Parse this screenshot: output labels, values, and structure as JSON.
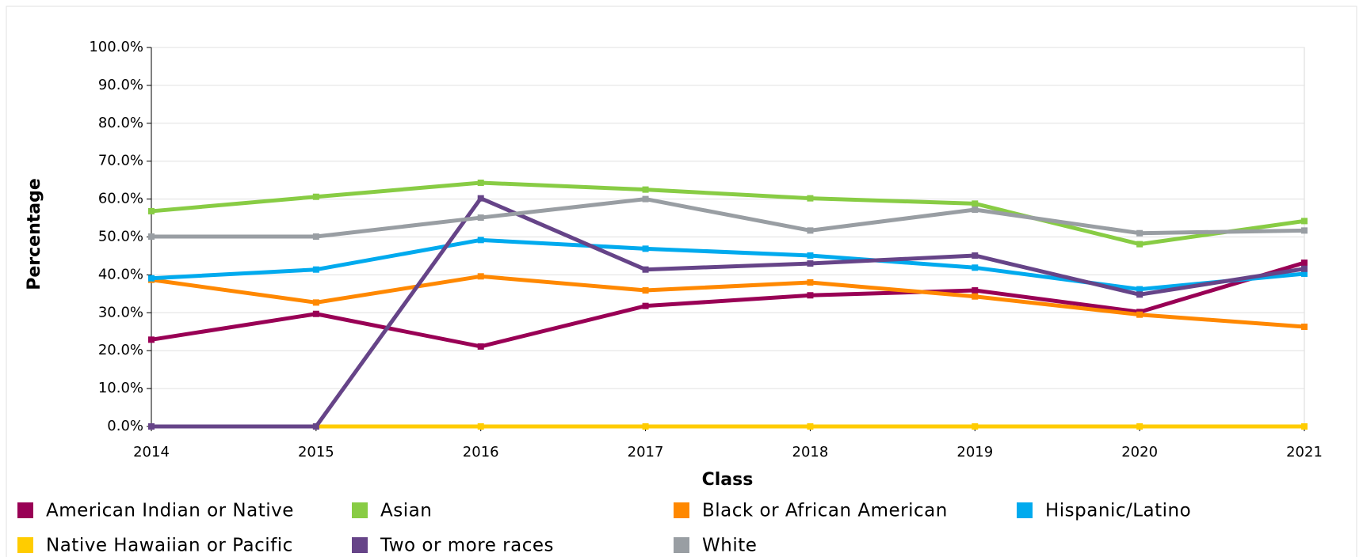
{
  "chart_data": {
    "type": "line",
    "x_label": "Class",
    "y_label": "Percentage",
    "categories": [
      "2014",
      "2015",
      "2016",
      "2017",
      "2018",
      "2019",
      "2020",
      "2021"
    ],
    "ylim": [
      0,
      100
    ],
    "yticks": [
      {
        "value": 0,
        "label": "0.0%"
      },
      {
        "value": 10,
        "label": "10.0%"
      },
      {
        "value": 20,
        "label": "20.0%"
      },
      {
        "value": 30,
        "label": "30.0%"
      },
      {
        "value": 40,
        "label": "40.0%"
      },
      {
        "value": 50,
        "label": "50.0%"
      },
      {
        "value": 60,
        "label": "60.0%"
      },
      {
        "value": 70,
        "label": "70.0%"
      },
      {
        "value": 80,
        "label": "80.0%"
      },
      {
        "value": 90,
        "label": "90.0%"
      },
      {
        "value": 100,
        "label": "100.0%"
      }
    ],
    "grid": true,
    "series": [
      {
        "name": "American Indian or Native",
        "color": "#990055",
        "values": [
          22.9,
          29.7,
          21.1,
          31.8,
          34.6,
          35.9,
          30.2,
          43.2
        ]
      },
      {
        "name": "Asian",
        "color": "#88cc44",
        "values": [
          56.8,
          60.6,
          64.3,
          62.5,
          60.2,
          58.8,
          48.1,
          54.2
        ]
      },
      {
        "name": "Black or African American",
        "color": "#ff8800",
        "values": [
          38.7,
          32.7,
          39.6,
          35.9,
          38.0,
          34.3,
          29.5,
          26.3
        ]
      },
      {
        "name": "Hispanic/Latino",
        "color": "#00aaee",
        "values": [
          39.1,
          41.4,
          49.2,
          46.9,
          45.1,
          41.9,
          36.2,
          40.3
        ]
      },
      {
        "name": "Native Hawaiian or Pacific",
        "color": "#ffcc00",
        "values": [
          0,
          0,
          0,
          0,
          0,
          0,
          0,
          0
        ]
      },
      {
        "name": "Two or more races",
        "color": "#664488",
        "values": [
          0,
          0,
          60.2,
          41.4,
          43.0,
          45.1,
          34.8,
          41.6
        ]
      },
      {
        "name": "White",
        "color": "#999ea3",
        "values": [
          50.1,
          50.1,
          55.1,
          60.0,
          51.7,
          57.2,
          51.0,
          51.7
        ]
      }
    ]
  }
}
